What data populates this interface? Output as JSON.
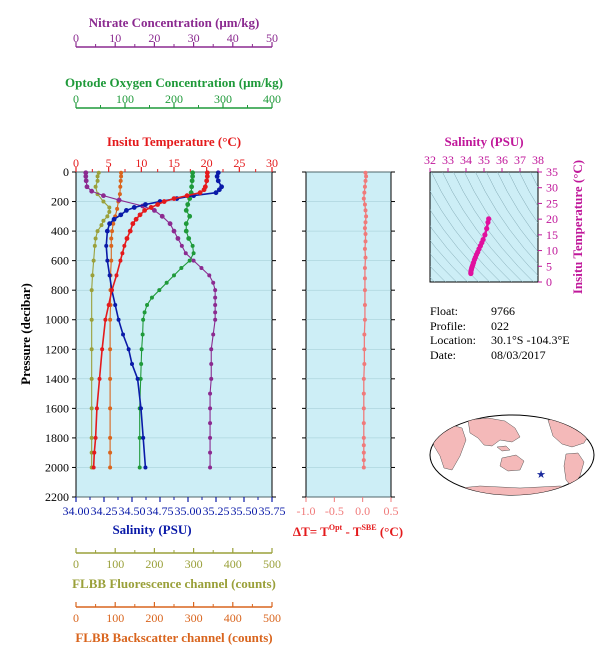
{
  "meta": {
    "float_label": "Float:",
    "float_value": "9766",
    "profile_label": "Profile:",
    "profile_value": "022",
    "location_label": "Location:",
    "location_value": "30.1°S  -104.3°E",
    "date_label": "Date:",
    "date_value": "08/03/2017"
  },
  "colors": {
    "background": "#cdeef6",
    "nitrate": "#8b2a90",
    "oxygen": "#1f9a3a",
    "temperature": "#e41a1c",
    "salinity": "#0a1aa8",
    "fluorescence": "#9aa03a",
    "backscatter": "#d9651e",
    "delta_t": "#f07a7a",
    "ts_curve": "#e0109e",
    "ts_axis": "#c0179a",
    "map_land": "#f4b9b9",
    "map_ocean": "#ffffff",
    "map_marker": "#1a2a9c"
  },
  "chart_data": [
    {
      "type": "line",
      "name": "profile",
      "y": {
        "label": "Pressure (decibar)",
        "lim": [
          0,
          2200
        ],
        "ticks": [
          0,
          200,
          400,
          600,
          800,
          1000,
          1200,
          1400,
          1600,
          1800,
          2000,
          2200
        ],
        "tick_labels": [
          "0",
          "200",
          "400",
          "600",
          "800",
          "1000",
          "1200",
          "1400",
          "1600",
          "1800",
          "2000",
          "2200"
        ],
        "inverted": true
      },
      "axes": {
        "nitrate": {
          "label": "Nitrate Concentration (μm/kg)",
          "lim": [
            0,
            50
          ],
          "ticks": [
            0,
            10,
            20,
            30,
            40,
            50
          ],
          "tick_labels": [
            "0",
            "10",
            "20",
            "30",
            "40",
            "50"
          ]
        },
        "oxygen": {
          "label": "Optode Oxygen Concentration (μm/kg)",
          "lim": [
            0,
            400
          ],
          "ticks": [
            0,
            100,
            200,
            300,
            400
          ],
          "tick_labels": [
            "0",
            "100",
            "200",
            "300",
            "400"
          ]
        },
        "temperature": {
          "label": "Insitu Temperature (°C)",
          "lim": [
            0,
            30
          ],
          "ticks": [
            0,
            5,
            10,
            15,
            20,
            25,
            30
          ],
          "tick_labels": [
            "0",
            "5",
            "10",
            "15",
            "20",
            "25",
            "30"
          ]
        },
        "salinity": {
          "label": "Salinity (PSU)",
          "lim": [
            34.0,
            35.75
          ],
          "ticks": [
            34.0,
            34.25,
            34.5,
            34.75,
            35.0,
            35.25,
            35.5,
            35.75
          ],
          "tick_labels": [
            "34.00",
            "34.25",
            "34.50",
            "34.75",
            "35.00",
            "35.25",
            "35.50",
            "35.75"
          ]
        },
        "fluorescence": {
          "label": "FLBB Fluorescence channel (counts)",
          "lim": [
            0,
            500
          ],
          "ticks": [
            0,
            100,
            200,
            300,
            400,
            500
          ],
          "tick_labels": [
            "0",
            "100",
            "200",
            "300",
            "400",
            "500"
          ]
        },
        "backscatter": {
          "label": "FLBB Backscatter channel (counts)",
          "lim": [
            0,
            500
          ],
          "ticks": [
            0,
            100,
            200,
            300,
            400,
            500
          ],
          "tick_labels": [
            "0",
            "100",
            "200",
            "300",
            "400",
            "500"
          ]
        }
      },
      "series": [
        {
          "key": "nitrate",
          "x": [
            2.5,
            2.5,
            2.6,
            2.8,
            4,
            7,
            11,
            17,
            20,
            22,
            24,
            25,
            26,
            27,
            28,
            30,
            32,
            34,
            35,
            35.5,
            35.5,
            35.5,
            35.5,
            35.5,
            35,
            34.5,
            34.5,
            34.5,
            34.2,
            34.2,
            34.2,
            34.2,
            34.2,
            34.2
          ],
          "p": [
            5,
            30,
            60,
            100,
            130,
            160,
            190,
            230,
            260,
            300,
            350,
            400,
            450,
            500,
            550,
            600,
            650,
            700,
            750,
            800,
            850,
            900,
            950,
            1000,
            1100,
            1200,
            1300,
            1400,
            1500,
            1600,
            1700,
            1800,
            1900,
            2000
          ]
        },
        {
          "key": "oxygen",
          "x": [
            238,
            238,
            237,
            236,
            235,
            232,
            228,
            225,
            232,
            225,
            225,
            230,
            238,
            240,
            232,
            215,
            200,
            185,
            170,
            155,
            145,
            140,
            137,
            136,
            134,
            133,
            132,
            130,
            130,
            130
          ],
          "p": [
            5,
            30,
            60,
            100,
            140,
            180,
            220,
            260,
            300,
            350,
            400,
            450,
            500,
            550,
            600,
            650,
            700,
            750,
            800,
            850,
            900,
            950,
            1000,
            1100,
            1200,
            1300,
            1400,
            1600,
            1800,
            2000
          ]
        },
        {
          "key": "temperature",
          "x": [
            20.1,
            20.1,
            20,
            19.8,
            19.6,
            19,
            17,
            15,
            13.5,
            12.5,
            11.5,
            10.5,
            9.8,
            9.2,
            8.7,
            8.3,
            7.8,
            7.4,
            7.1,
            6.8,
            6.2,
            5.5,
            5,
            4.5,
            4,
            3.6,
            3.2,
            3,
            2.8,
            2.7
          ],
          "p": [
            5,
            30,
            60,
            100,
            120,
            140,
            160,
            180,
            200,
            220,
            240,
            260,
            290,
            320,
            350,
            400,
            450,
            500,
            550,
            600,
            700,
            800,
            900,
            1000,
            1200,
            1400,
            1600,
            1800,
            1900,
            2000
          ]
        },
        {
          "key": "salinity",
          "x": [
            35.27,
            35.26,
            35.27,
            35.3,
            35.28,
            35.25,
            35.05,
            34.9,
            34.75,
            34.62,
            34.52,
            34.45,
            34.4,
            34.34,
            34.3,
            34.28,
            34.27,
            34.28,
            34.3,
            34.32,
            34.35,
            34.38,
            34.42,
            34.47,
            34.5,
            34.55,
            34.58,
            34.6,
            34.62
          ],
          "p": [
            5,
            30,
            60,
            100,
            120,
            140,
            160,
            180,
            200,
            220,
            240,
            260,
            290,
            320,
            350,
            400,
            500,
            600,
            700,
            800,
            900,
            1000,
            1100,
            1200,
            1300,
            1400,
            1600,
            1800,
            2000
          ]
        },
        {
          "key": "fluorescence",
          "x": [
            58,
            55,
            55,
            50,
            55,
            70,
            85,
            85,
            80,
            70,
            65,
            55,
            50,
            48,
            45,
            42,
            40,
            40,
            40,
            40,
            40,
            40,
            40,
            40
          ],
          "p": [
            5,
            30,
            60,
            100,
            150,
            200,
            240,
            270,
            300,
            330,
            360,
            400,
            450,
            500,
            600,
            700,
            800,
            1000,
            1200,
            1400,
            1600,
            1800,
            1900,
            2000
          ]
        },
        {
          "key": "backscatter",
          "x": [
            115,
            115,
            114,
            113,
            112,
            108,
            105,
            100,
            95,
            92,
            90,
            90,
            90,
            88,
            88,
            88,
            87,
            87,
            87,
            87,
            87,
            87,
            87
          ],
          "p": [
            5,
            30,
            60,
            100,
            150,
            200,
            250,
            300,
            350,
            400,
            450,
            500,
            600,
            700,
            800,
            900,
            1000,
            1200,
            1400,
            1600,
            1800,
            1900,
            2000
          ]
        }
      ]
    },
    {
      "type": "line",
      "name": "delta_t",
      "x": {
        "label": "ΔT= TOpt - TSBE (°C)",
        "lim": [
          -1.0,
          0.5
        ],
        "ticks": [
          -1.0,
          -0.5,
          0.0,
          0.5
        ],
        "tick_labels": [
          "-1.0",
          "-0.5",
          "0.0",
          "0.5"
        ]
      },
      "y": {
        "lim": [
          0,
          2200
        ],
        "inverted": true
      },
      "series": [
        {
          "key": "delta_t",
          "x": [
            0.05,
            0.06,
            0.05,
            0.04,
            0.03,
            0.02,
            0.04,
            0.05,
            0.06,
            0.05,
            0.04,
            0.05,
            0.05,
            0.04,
            0.05,
            0.04,
            0.04,
            0.04,
            0.04,
            0.04,
            0.03,
            0.03,
            0.03,
            0.02,
            0.02,
            0.02,
            0.02,
            0.02,
            0.02,
            0.02,
            0.02,
            0.02
          ],
          "p": [
            5,
            30,
            60,
            100,
            140,
            180,
            220,
            260,
            300,
            340,
            380,
            420,
            470,
            520,
            580,
            650,
            720,
            800,
            900,
            1000,
            1100,
            1200,
            1300,
            1400,
            1500,
            1600,
            1700,
            1800,
            1850,
            1900,
            1950,
            2000
          ]
        }
      ]
    },
    {
      "type": "scatter",
      "name": "ts_diagram",
      "x": {
        "label": "Salinity (PSU)",
        "lim": [
          32,
          38
        ],
        "ticks": [
          32,
          33,
          34,
          35,
          36,
          37,
          38
        ],
        "tick_labels": [
          "32",
          "33",
          "34",
          "35",
          "36",
          "37",
          "38"
        ]
      },
      "y": {
        "label": "Insitu Temperature (°C)",
        "lim": [
          0,
          35
        ],
        "ticks": [
          0,
          5,
          10,
          15,
          20,
          25,
          30,
          35
        ],
        "tick_labels": [
          "0",
          "5",
          "10",
          "15",
          "20",
          "25",
          "30",
          "35"
        ]
      },
      "series": [
        {
          "key": "ts",
          "x": [
            34.27,
            34.27,
            34.28,
            34.3,
            34.32,
            34.35,
            34.38,
            34.42,
            34.47,
            34.52,
            34.58,
            34.65,
            34.72,
            34.8,
            34.88,
            34.95,
            35.05,
            35.15,
            35.22,
            35.26
          ],
          "y": [
            2.7,
            3.0,
            3.6,
            4.0,
            4.5,
            5.0,
            5.5,
            6.2,
            7.1,
            7.8,
            8.7,
            9.5,
            10.5,
            11.5,
            12.5,
            13.5,
            15,
            17,
            19,
            20.1
          ]
        }
      ]
    }
  ]
}
